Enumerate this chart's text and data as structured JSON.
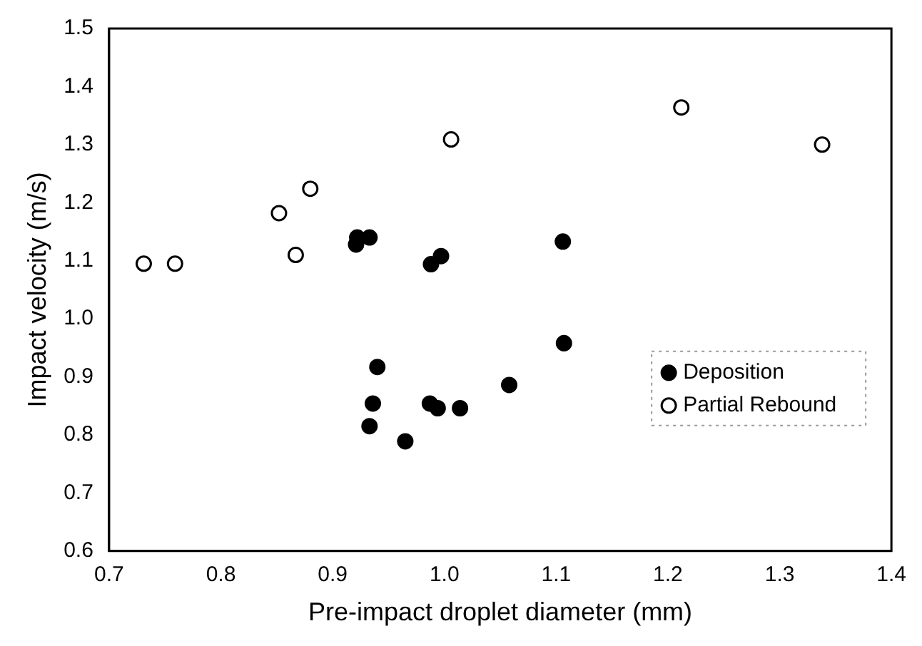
{
  "chart_data": {
    "type": "scatter",
    "xlabel": "Pre-impact droplet diameter (mm)",
    "ylabel": "Impact velocity (m/s)",
    "xlim": [
      0.7,
      1.4
    ],
    "xticks": [
      {
        "value": 0.7,
        "label": "0.7"
      },
      {
        "value": 0.8,
        "label": "0.8"
      },
      {
        "value": 0.9,
        "label": "0.9"
      },
      {
        "value": 1.0,
        "label": "1.0"
      },
      {
        "value": 1.1,
        "label": "1.1"
      },
      {
        "value": 1.2,
        "label": "1.2"
      },
      {
        "value": 1.3,
        "label": "1.3"
      },
      {
        "value": 1.4,
        "label": "1.4"
      }
    ],
    "ylim": [
      0.6,
      1.5
    ],
    "yticks": [
      {
        "value": 0.6,
        "label": "0.6"
      },
      {
        "value": 0.7,
        "label": "0.7"
      },
      {
        "value": 0.8,
        "label": "0.8"
      },
      {
        "value": 0.9,
        "label": "0.9"
      },
      {
        "value": 1.0,
        "label": "1.0"
      },
      {
        "value": 1.1,
        "label": "1.1"
      },
      {
        "value": 1.2,
        "label": "1.2"
      },
      {
        "value": 1.3,
        "label": "1.3"
      },
      {
        "value": 1.4,
        "label": "1.4"
      },
      {
        "value": 1.5,
        "label": "1.5"
      }
    ],
    "grid": false,
    "legend": "bottom right",
    "marker": "circle",
    "series": [
      {
        "name": "Deposition",
        "color": "#000000",
        "x": [
          0.921,
          0.922,
          0.933,
          0.988,
          0.997,
          1.106,
          0.94,
          0.936,
          0.933,
          0.965,
          0.987,
          0.994,
          1.014,
          1.058,
          1.107
        ],
        "values": [
          1.128,
          1.14,
          1.14,
          1.094,
          1.108,
          1.133,
          0.917,
          0.854,
          0.815,
          0.789,
          0.854,
          0.846,
          0.846,
          0.886,
          0.958
        ]
      },
      {
        "name": "Partial Rebound",
        "color": "#ffffff",
        "x": [
          0.731,
          0.759,
          0.852,
          0.867,
          0.88,
          1.006,
          1.212,
          1.338
        ],
        "values": [
          1.095,
          1.095,
          1.182,
          1.11,
          1.224,
          1.309,
          1.364,
          1.3
        ]
      }
    ]
  }
}
